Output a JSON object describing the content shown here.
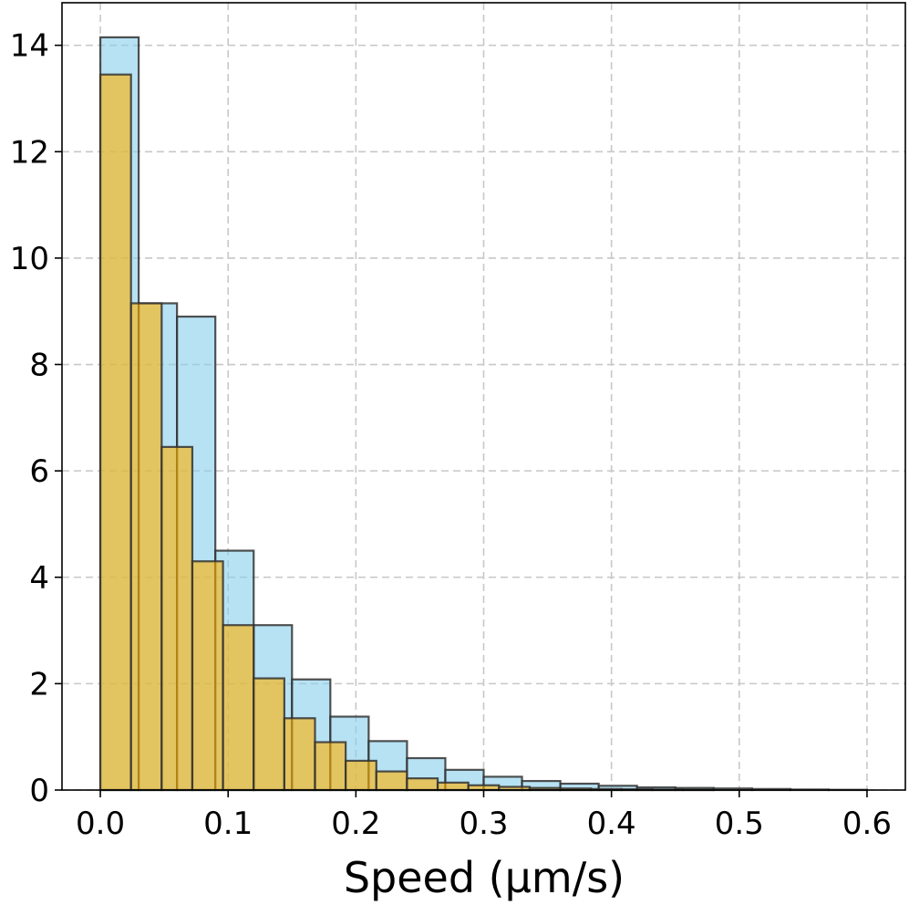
{
  "chart_data": {
    "type": "bar",
    "xlabel": "Speed (μm/s)",
    "ylabel": "",
    "xlim": [
      -0.03,
      0.63
    ],
    "ylim": [
      0,
      14.8
    ],
    "x_ticks": [
      "0.0",
      "0.1",
      "0.2",
      "0.3",
      "0.4",
      "0.5",
      "0.6"
    ],
    "y_ticks": [
      "0",
      "2",
      "4",
      "6",
      "8",
      "10",
      "12",
      "14"
    ],
    "grid": true,
    "series": [
      {
        "color": "#87ceeb",
        "bin_edges": [
          0.0,
          0.03,
          0.06,
          0.09,
          0.12,
          0.15,
          0.18,
          0.21,
          0.24,
          0.27,
          0.3,
          0.33,
          0.36,
          0.39,
          0.42,
          0.45,
          0.48,
          0.51,
          0.54,
          0.57,
          0.6
        ],
        "values": [
          14.15,
          9.15,
          8.9,
          4.5,
          3.1,
          2.08,
          1.38,
          0.92,
          0.6,
          0.38,
          0.25,
          0.17,
          0.12,
          0.08,
          0.05,
          0.04,
          0.03,
          0.02,
          0.01,
          0.005
        ]
      },
      {
        "color": "#ffb000",
        "bin_edges": [
          0.0,
          0.024,
          0.048,
          0.072,
          0.096,
          0.12,
          0.144,
          0.168,
          0.192,
          0.216,
          0.24,
          0.264,
          0.288,
          0.312,
          0.336,
          0.36,
          0.384,
          0.408,
          0.432,
          0.456,
          0.48
        ],
        "values": [
          13.45,
          9.15,
          6.45,
          4.3,
          3.1,
          2.1,
          1.35,
          0.9,
          0.55,
          0.35,
          0.22,
          0.14,
          0.09,
          0.06,
          0.04,
          0.03,
          0.02,
          0.015,
          0.01,
          0.005
        ]
      }
    ]
  }
}
